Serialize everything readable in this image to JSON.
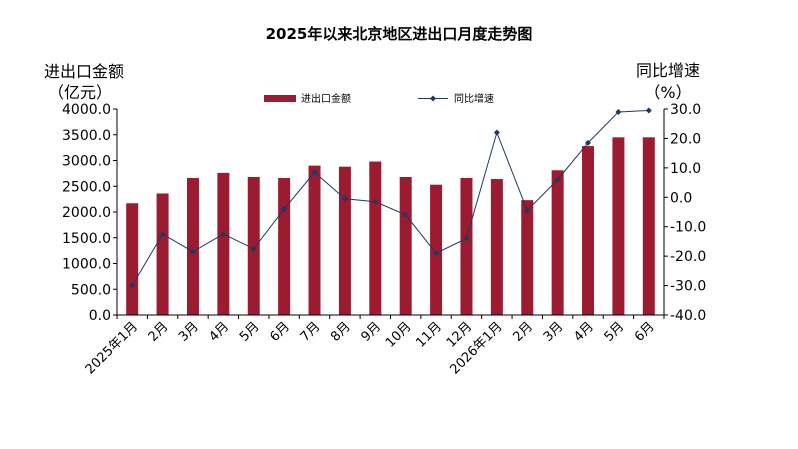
{
  "chart_data": {
    "type": "bar+line",
    "title": "2025年以来北京地区进出口月度走势图",
    "categories": [
      "2025年1月",
      "2月",
      "3月",
      "4月",
      "5月",
      "6月",
      "7月",
      "8月",
      "9月",
      "10月",
      "11月",
      "12月",
      "2026年1月",
      "2月",
      "3月",
      "4月",
      "5月",
      "6月"
    ],
    "series": [
      {
        "name": "进出口金额",
        "type": "bar",
        "axis": "left",
        "color": "#9b1b30",
        "values": [
          2170,
          2360,
          2660,
          2760,
          2680,
          2660,
          2900,
          2880,
          2980,
          2680,
          2530,
          2660,
          2640,
          2230,
          2810,
          3280,
          3450,
          3450
        ]
      },
      {
        "name": "同比增速",
        "type": "line",
        "axis": "right",
        "color": "#1f3864",
        "values": [
          -30.0,
          -12.5,
          -18.5,
          -12.5,
          -17.5,
          -4.0,
          8.5,
          -0.5,
          -1.5,
          -6.0,
          -19.0,
          -14.0,
          22.0,
          -4.5,
          6.0,
          18.5,
          29.0,
          29.5
        ]
      }
    ],
    "y_left": {
      "label_line1": "进出口金额",
      "label_line2": "（亿元）",
      "min": 0,
      "max": 4000,
      "step": 500,
      "ticks": [
        "0.0",
        "500.0",
        "1000.0",
        "1500.0",
        "2000.0",
        "2500.0",
        "3000.0",
        "3500.0",
        "4000.0"
      ]
    },
    "y_right": {
      "label_line1": "同比增速",
      "label_line2": "（%）",
      "min": -40,
      "max": 30,
      "step": 10,
      "ticks": [
        "-40.0",
        "-30.0",
        "-20.0",
        "-10.0",
        "0.0",
        "10.0",
        "20.0",
        "30.0"
      ]
    },
    "legend": {
      "placement": "top-center"
    },
    "grid": false
  }
}
